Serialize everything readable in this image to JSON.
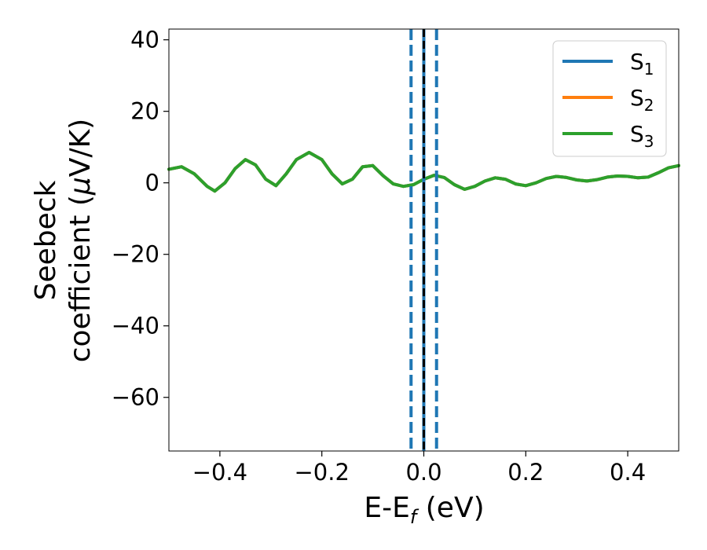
{
  "chart_data": {
    "type": "line",
    "title": "",
    "xlabel_main": "E-E",
    "xlabel_sub": "f",
    "xlabel_unit": " (eV)",
    "ylabel_line1": "Seebeck",
    "ylabel_line2_prefix": "coefficient  (",
    "ylabel_line2_mu": "μ",
    "ylabel_line2_suffix": "V/K)",
    "xlim": [
      -0.5,
      0.5
    ],
    "ylim": [
      -75,
      43
    ],
    "xticks": [
      -0.4,
      -0.2,
      0.0,
      0.2,
      0.4
    ],
    "xtick_labels": [
      "−0.4",
      "−0.2",
      "0.0",
      "0.2",
      "0.4"
    ],
    "yticks": [
      40,
      20,
      0,
      -20,
      -40,
      -60
    ],
    "ytick_labels": [
      "40",
      "20",
      "0",
      "−20",
      "−40",
      "−60"
    ],
    "grid": false,
    "legend_position": "top-right",
    "series": [
      {
        "name": "S",
        "sub": "1",
        "color": "#1f77b4",
        "x": [
          -0.5,
          -0.475,
          -0.45,
          -0.425,
          -0.41,
          -0.39,
          -0.37,
          -0.35,
          -0.33,
          -0.31,
          -0.29,
          -0.27,
          -0.25,
          -0.225,
          -0.2,
          -0.18,
          -0.16,
          -0.14,
          -0.12,
          -0.1,
          -0.08,
          -0.06,
          -0.04,
          -0.02,
          0.0,
          0.02,
          0.04,
          0.06,
          0.08,
          0.1,
          0.12,
          0.14,
          0.16,
          0.18,
          0.2,
          0.22,
          0.24,
          0.26,
          0.28,
          0.3,
          0.32,
          0.34,
          0.36,
          0.38,
          0.4,
          0.42,
          0.44,
          0.46,
          0.48,
          0.5
        ],
        "y": [
          3.8,
          4.5,
          2.5,
          -1.0,
          -2.3,
          0.0,
          4.0,
          6.5,
          5.0,
          1.0,
          -0.8,
          2.5,
          6.5,
          8.5,
          6.5,
          2.5,
          -0.3,
          1.0,
          4.5,
          4.8,
          2.0,
          -0.3,
          -1.0,
          -0.5,
          1.0,
          2.1,
          1.5,
          -0.5,
          -1.8,
          -1.0,
          0.5,
          1.4,
          1.0,
          -0.3,
          -0.8,
          0.0,
          1.2,
          1.8,
          1.5,
          0.8,
          0.5,
          0.9,
          1.6,
          1.9,
          1.8,
          1.4,
          1.6,
          2.8,
          4.2,
          4.8
        ]
      },
      {
        "name": "S",
        "sub": "2",
        "color": "#ff7f0e",
        "x": [
          -0.5,
          -0.475,
          -0.45,
          -0.425,
          -0.41,
          -0.39,
          -0.37,
          -0.35,
          -0.33,
          -0.31,
          -0.29,
          -0.27,
          -0.25,
          -0.225,
          -0.2,
          -0.18,
          -0.16,
          -0.14,
          -0.12,
          -0.1,
          -0.08,
          -0.06,
          -0.04,
          -0.02,
          0.0,
          0.02,
          0.04,
          0.06,
          0.08,
          0.1,
          0.12,
          0.14,
          0.16,
          0.18,
          0.2,
          0.22,
          0.24,
          0.26,
          0.28,
          0.3,
          0.32,
          0.34,
          0.36,
          0.38,
          0.4,
          0.42,
          0.44,
          0.46,
          0.48,
          0.5
        ],
        "y": [
          3.8,
          4.5,
          2.5,
          -1.0,
          -2.3,
          0.0,
          4.0,
          6.5,
          5.0,
          1.0,
          -0.8,
          2.5,
          6.5,
          8.5,
          6.5,
          2.5,
          -0.3,
          1.0,
          4.5,
          4.8,
          2.0,
          -0.3,
          -1.0,
          -0.5,
          1.0,
          2.1,
          1.5,
          -0.5,
          -1.8,
          -1.0,
          0.5,
          1.4,
          1.0,
          -0.3,
          -0.8,
          0.0,
          1.2,
          1.8,
          1.5,
          0.8,
          0.5,
          0.9,
          1.6,
          1.9,
          1.8,
          1.4,
          1.6,
          2.8,
          4.2,
          4.8
        ]
      },
      {
        "name": "S",
        "sub": "3",
        "color": "#2ca02c",
        "x": [
          -0.5,
          -0.475,
          -0.45,
          -0.425,
          -0.41,
          -0.39,
          -0.37,
          -0.35,
          -0.33,
          -0.31,
          -0.29,
          -0.27,
          -0.25,
          -0.225,
          -0.2,
          -0.18,
          -0.16,
          -0.14,
          -0.12,
          -0.1,
          -0.08,
          -0.06,
          -0.04,
          -0.02,
          0.0,
          0.02,
          0.04,
          0.06,
          0.08,
          0.1,
          0.12,
          0.14,
          0.16,
          0.18,
          0.2,
          0.22,
          0.24,
          0.26,
          0.28,
          0.3,
          0.32,
          0.34,
          0.36,
          0.38,
          0.4,
          0.42,
          0.44,
          0.46,
          0.48,
          0.5
        ],
        "y": [
          3.8,
          4.5,
          2.5,
          -1.0,
          -2.3,
          0.0,
          4.0,
          6.5,
          5.0,
          1.0,
          -0.8,
          2.5,
          6.5,
          8.5,
          6.5,
          2.5,
          -0.3,
          1.0,
          4.5,
          4.8,
          2.0,
          -0.3,
          -1.0,
          -0.5,
          1.0,
          2.1,
          1.5,
          -0.5,
          -1.8,
          -1.0,
          0.5,
          1.4,
          1.0,
          -0.3,
          -0.8,
          0.0,
          1.2,
          1.8,
          1.5,
          0.8,
          0.5,
          0.9,
          1.6,
          1.9,
          1.8,
          1.4,
          1.6,
          2.8,
          4.2,
          4.8
        ]
      }
    ],
    "vertical_lines": [
      {
        "x": -0.025,
        "color": "#1f77b4",
        "style": "dashed"
      },
      {
        "x": 0.0,
        "color": "#1f77b4",
        "style": "solid"
      },
      {
        "x": 0.0,
        "color": "#000000",
        "style": "dashed"
      },
      {
        "x": 0.025,
        "color": "#1f77b4",
        "style": "dashed"
      }
    ]
  }
}
